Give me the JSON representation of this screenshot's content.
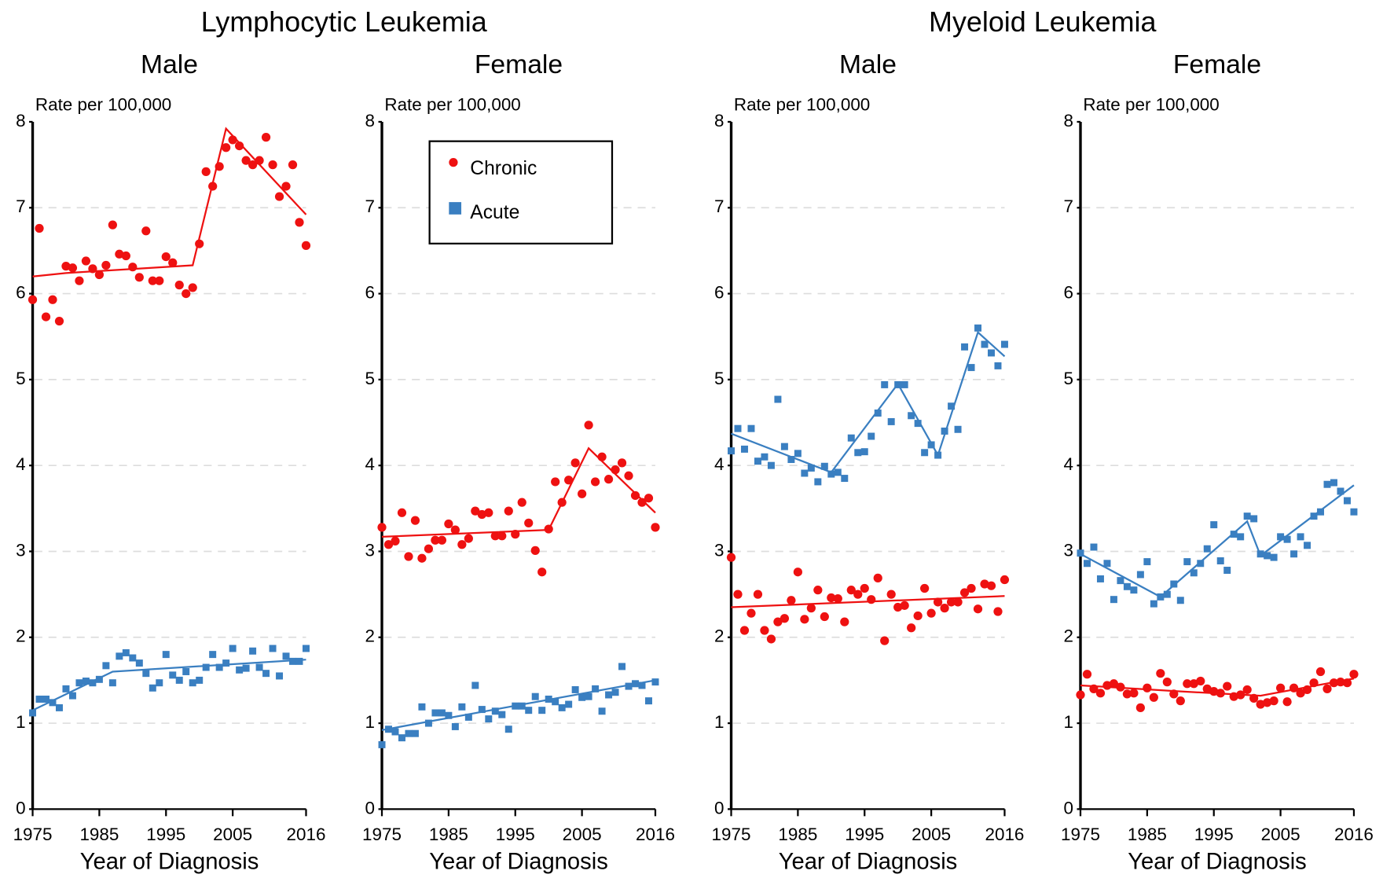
{
  "chart_data": [
    {
      "type": "scatter",
      "group_title": "Lymphocytic Leukemia",
      "title": "Male",
      "y_axis_label": "Rate per 100,000",
      "x_axis_label": "Year of Diagnosis",
      "x": [
        1975,
        1976,
        1977,
        1978,
        1979,
        1980,
        1981,
        1982,
        1983,
        1984,
        1985,
        1986,
        1987,
        1988,
        1989,
        1990,
        1991,
        1992,
        1993,
        1994,
        1995,
        1996,
        1997,
        1998,
        1999,
        2000,
        2001,
        2002,
        2003,
        2004,
        2005,
        2006,
        2007,
        2008,
        2009,
        2010,
        2011,
        2012,
        2013,
        2014,
        2015,
        2016
      ],
      "xlim": [
        1975,
        2016
      ],
      "xticks": [
        1975,
        1985,
        1995,
        2005,
        2016
      ],
      "ylim": [
        0,
        8
      ],
      "yticks": [
        0,
        1,
        2,
        3,
        4,
        5,
        6,
        7,
        8
      ],
      "grid": true,
      "series": [
        {
          "color": "#ee1111",
          "marker": "circle",
          "values": [
            5.93,
            6.76,
            5.73,
            5.93,
            5.68,
            6.32,
            6.3,
            6.15,
            6.38,
            6.29,
            6.22,
            6.33,
            6.8,
            6.46,
            6.44,
            6.31,
            6.19,
            6.73,
            6.15,
            6.15,
            6.43,
            6.36,
            6.1,
            6.0,
            6.07,
            6.58,
            7.42,
            7.25,
            7.48,
            7.7,
            7.79,
            7.72,
            7.55,
            7.5,
            7.55,
            7.82,
            7.5,
            7.13,
            7.25,
            7.5,
            6.83,
            6.56
          ],
          "trend": {
            "x": [
              1975,
              1980,
              1999,
              2004,
              2016
            ],
            "values": [
              6.2,
              6.24,
              6.33,
              7.92,
              6.92
            ]
          }
        },
        {
          "color": "#3a7fc1",
          "marker": "square",
          "values": [
            1.12,
            1.28,
            1.28,
            1.24,
            1.18,
            1.4,
            1.32,
            1.47,
            1.49,
            1.47,
            1.51,
            1.67,
            1.47,
            1.78,
            1.82,
            1.76,
            1.7,
            1.58,
            1.41,
            1.47,
            1.8,
            1.56,
            1.5,
            1.6,
            1.47,
            1.5,
            1.65,
            1.8,
            1.65,
            1.7,
            1.87,
            1.62,
            1.64,
            1.84,
            1.65,
            1.58,
            1.87,
            1.55,
            1.78,
            1.72,
            1.72,
            1.87
          ],
          "trend": {
            "x": [
              1975,
              1987,
              2016
            ],
            "values": [
              1.15,
              1.6,
              1.74
            ]
          }
        }
      ]
    },
    {
      "type": "scatter",
      "title": "Female",
      "y_axis_label": "Rate per 100,000",
      "x_axis_label": "Year of Diagnosis",
      "x": [
        1975,
        1976,
        1977,
        1978,
        1979,
        1980,
        1981,
        1982,
        1983,
        1984,
        1985,
        1986,
        1987,
        1988,
        1989,
        1990,
        1991,
        1992,
        1993,
        1994,
        1995,
        1996,
        1997,
        1998,
        1999,
        2000,
        2001,
        2002,
        2003,
        2004,
        2005,
        2006,
        2007,
        2008,
        2009,
        2010,
        2011,
        2012,
        2013,
        2014,
        2015,
        2016
      ],
      "xlim": [
        1975,
        2016
      ],
      "xticks": [
        1975,
        1985,
        1995,
        2005,
        2016
      ],
      "ylim": [
        0,
        8
      ],
      "yticks": [
        0,
        1,
        2,
        3,
        4,
        5,
        6,
        7,
        8
      ],
      "grid": true,
      "legend": "upper left",
      "series": [
        {
          "name": "Chronic",
          "color": "#ee1111",
          "marker": "circle",
          "values": [
            3.28,
            3.08,
            3.12,
            3.45,
            2.94,
            3.36,
            2.92,
            3.03,
            3.13,
            3.13,
            3.32,
            3.25,
            3.08,
            3.15,
            3.47,
            3.43,
            3.45,
            3.18,
            3.18,
            3.47,
            3.2,
            3.57,
            3.33,
            3.01,
            2.76,
            3.26,
            3.81,
            3.57,
            3.83,
            4.03,
            3.67,
            4.47,
            3.81,
            4.1,
            3.84,
            3.95,
            4.03,
            3.88,
            3.65,
            3.57,
            3.62,
            3.28
          ],
          "trend": {
            "x": [
              1975,
              2000,
              2006,
              2016
            ],
            "values": [
              3.17,
              3.25,
              4.2,
              3.45
            ]
          }
        },
        {
          "name": "Acute",
          "color": "#3a7fc1",
          "marker": "square",
          "values": [
            0.75,
            0.93,
            0.9,
            0.83,
            0.88,
            0.88,
            1.19,
            1.0,
            1.12,
            1.12,
            1.09,
            0.96,
            1.19,
            1.07,
            1.44,
            1.16,
            1.05,
            1.14,
            1.1,
            0.93,
            1.2,
            1.2,
            1.15,
            1.31,
            1.15,
            1.28,
            1.25,
            1.18,
            1.22,
            1.39,
            1.3,
            1.31,
            1.4,
            1.14,
            1.33,
            1.36,
            1.66,
            1.43,
            1.46,
            1.44,
            1.26,
            1.48
          ],
          "trend": {
            "x": [
              1975,
              2016
            ],
            "values": [
              0.92,
              1.5
            ]
          }
        }
      ]
    },
    {
      "type": "scatter",
      "group_title": "Myeloid Leukemia",
      "title": "Male",
      "y_axis_label": "Rate per 100,000",
      "x_axis_label": "Year of Diagnosis",
      "x": [
        1975,
        1976,
        1977,
        1978,
        1979,
        1980,
        1981,
        1982,
        1983,
        1984,
        1985,
        1986,
        1987,
        1988,
        1989,
        1990,
        1991,
        1992,
        1993,
        1994,
        1995,
        1996,
        1997,
        1998,
        1999,
        2000,
        2001,
        2002,
        2003,
        2004,
        2005,
        2006,
        2007,
        2008,
        2009,
        2010,
        2011,
        2012,
        2013,
        2014,
        2015,
        2016
      ],
      "xlim": [
        1975,
        2016
      ],
      "xticks": [
        1975,
        1985,
        1995,
        2005,
        2016
      ],
      "ylim": [
        0,
        8
      ],
      "yticks": [
        0,
        1,
        2,
        3,
        4,
        5,
        6,
        7,
        8
      ],
      "grid": true,
      "series": [
        {
          "color": "#ee1111",
          "marker": "circle",
          "values": [
            2.93,
            2.5,
            2.08,
            2.28,
            2.5,
            2.08,
            1.98,
            2.18,
            2.22,
            2.43,
            2.76,
            2.21,
            2.34,
            2.55,
            2.24,
            2.46,
            2.45,
            2.18,
            2.55,
            2.5,
            2.57,
            2.44,
            2.69,
            1.96,
            2.5,
            2.35,
            2.37,
            2.11,
            2.25,
            2.57,
            2.28,
            2.41,
            2.34,
            2.41,
            2.41,
            2.52,
            2.57,
            2.33,
            2.62,
            2.6,
            2.3,
            2.67
          ],
          "trend": {
            "x": [
              1975,
              2016
            ],
            "values": [
              2.35,
              2.48
            ]
          }
        },
        {
          "color": "#3a7fc1",
          "marker": "square",
          "values": [
            4.17,
            4.43,
            4.19,
            4.43,
            4.05,
            4.1,
            4.0,
            4.77,
            4.22,
            4.07,
            4.14,
            3.91,
            3.97,
            3.81,
            3.99,
            3.9,
            3.92,
            3.85,
            4.32,
            4.15,
            4.16,
            4.34,
            4.61,
            4.94,
            4.51,
            4.94,
            4.94,
            4.58,
            4.49,
            4.15,
            4.24,
            4.12,
            4.4,
            4.69,
            4.42,
            5.38,
            5.14,
            5.6,
            5.41,
            5.31,
            5.16,
            5.41
          ],
          "trend": {
            "x": [
              1975,
              1990,
              2000,
              2006,
              2012,
              2016
            ],
            "values": [
              4.37,
              3.92,
              4.95,
              4.12,
              5.55,
              5.27
            ]
          }
        }
      ]
    },
    {
      "type": "scatter",
      "title": "Female",
      "y_axis_label": "Rate per 100,000",
      "x_axis_label": "Year of Diagnosis",
      "x": [
        1975,
        1976,
        1977,
        1978,
        1979,
        1980,
        1981,
        1982,
        1983,
        1984,
        1985,
        1986,
        1987,
        1988,
        1989,
        1990,
        1991,
        1992,
        1993,
        1994,
        1995,
        1996,
        1997,
        1998,
        1999,
        2000,
        2001,
        2002,
        2003,
        2004,
        2005,
        2006,
        2007,
        2008,
        2009,
        2010,
        2011,
        2012,
        2013,
        2014,
        2015,
        2016
      ],
      "xlim": [
        1975,
        2016
      ],
      "xticks": [
        1975,
        1985,
        1995,
        2005,
        2016
      ],
      "ylim": [
        0,
        8
      ],
      "yticks": [
        0,
        1,
        2,
        3,
        4,
        5,
        6,
        7,
        8
      ],
      "grid": true,
      "series": [
        {
          "color": "#ee1111",
          "marker": "circle",
          "values": [
            1.33,
            1.57,
            1.4,
            1.35,
            1.44,
            1.46,
            1.42,
            1.34,
            1.35,
            1.18,
            1.41,
            1.3,
            1.58,
            1.48,
            1.34,
            1.26,
            1.46,
            1.46,
            1.49,
            1.4,
            1.37,
            1.35,
            1.43,
            1.31,
            1.33,
            1.39,
            1.29,
            1.22,
            1.24,
            1.26,
            1.41,
            1.25,
            1.41,
            1.35,
            1.39,
            1.47,
            1.6,
            1.4,
            1.47,
            1.48,
            1.47,
            1.57
          ],
          "trend": {
            "x": [
              1975,
              1990,
              2002,
              2016
            ],
            "values": [
              1.44,
              1.37,
              1.32,
              1.52
            ]
          }
        },
        {
          "color": "#3a7fc1",
          "marker": "square",
          "values": [
            2.98,
            2.86,
            3.05,
            2.68,
            2.86,
            2.44,
            2.66,
            2.59,
            2.55,
            2.73,
            2.88,
            2.39,
            2.47,
            2.5,
            2.62,
            2.43,
            2.88,
            2.75,
            2.86,
            3.03,
            3.31,
            2.89,
            2.78,
            3.2,
            3.17,
            3.41,
            3.38,
            2.97,
            2.95,
            2.93,
            3.17,
            3.14,
            2.97,
            3.17,
            3.07,
            3.41,
            3.46,
            3.78,
            3.8,
            3.7,
            3.59,
            3.46
          ],
          "trend": {
            "x": [
              1975,
              1987,
              2000,
              2002,
              2016
            ],
            "values": [
              2.97,
              2.47,
              3.35,
              2.95,
              3.77
            ]
          }
        }
      ]
    }
  ]
}
